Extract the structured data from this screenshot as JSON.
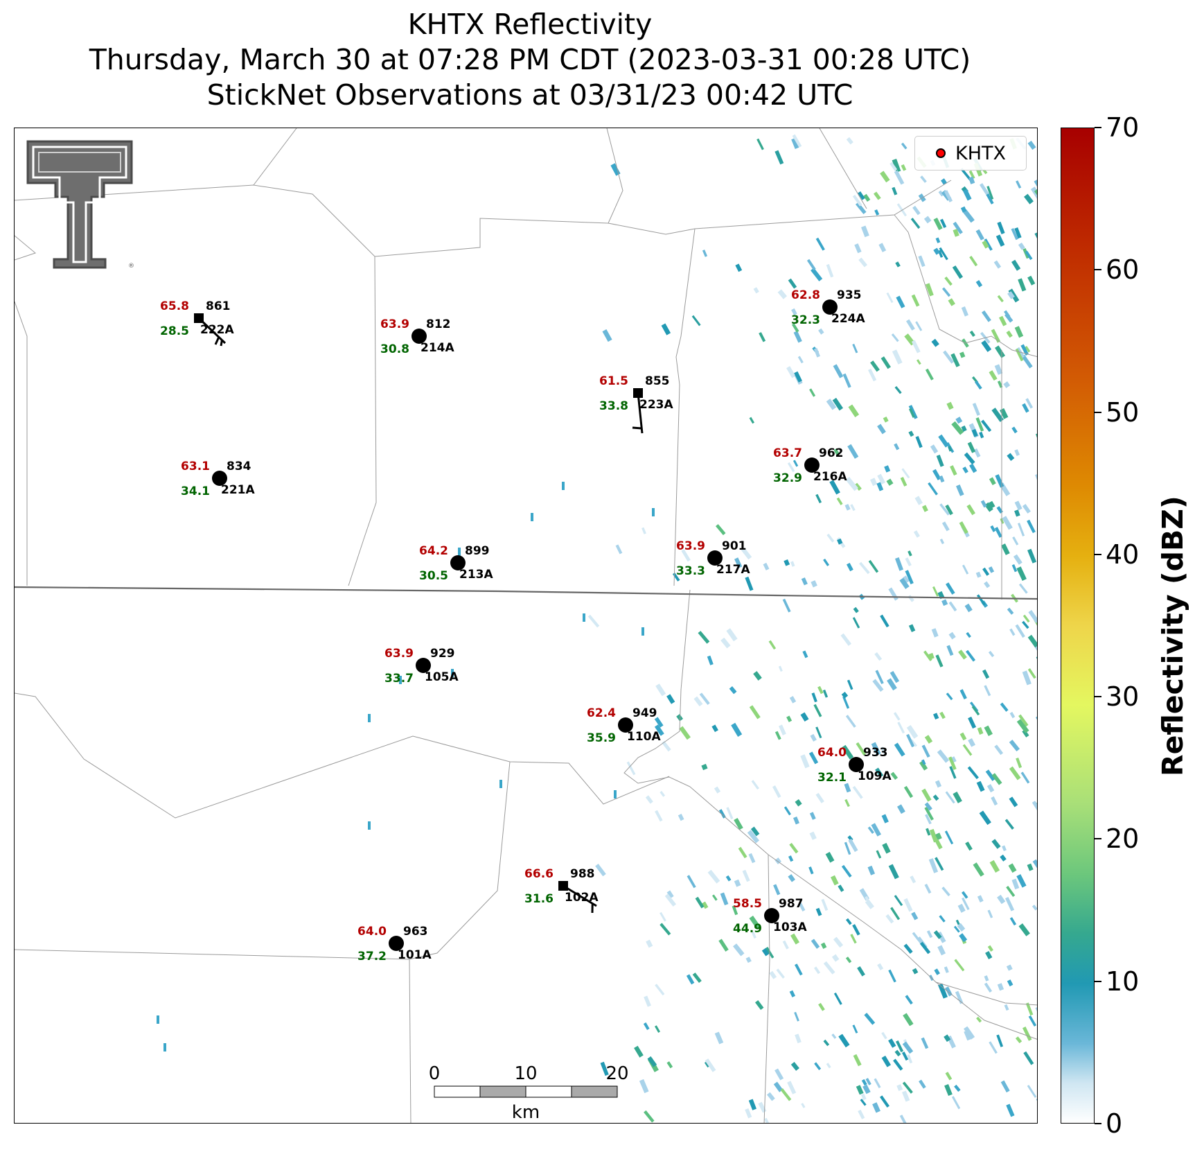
{
  "title": {
    "line1": "KHTX Reflectivity",
    "line2": "Thursday, March 30 at 07:28 PM CDT (2023-03-31 00:28 UTC)",
    "line3": "StickNet Observations at 03/31/23 00:42 UTC"
  },
  "legend": {
    "label": "KHTX",
    "marker_color": "#ff0000"
  },
  "colorbar": {
    "title": "Reflectivity (dBZ)",
    "ticks": [
      "0",
      "10",
      "20",
      "30",
      "40",
      "50",
      "60",
      "70"
    ],
    "range": [
      0,
      70
    ]
  },
  "scalebar": {
    "labels": [
      "0",
      "10",
      "20"
    ],
    "unit": "km"
  },
  "logo": "texas-tech-double-t",
  "stations": [
    {
      "temp": "65.8",
      "dew": "28.5",
      "pressure": "861",
      "id": "222A",
      "marker": "square"
    },
    {
      "temp": "63.9",
      "dew": "30.8",
      "pressure": "812",
      "id": "214A",
      "marker": "circle"
    },
    {
      "temp": "62.8",
      "dew": "32.3",
      "pressure": "935",
      "id": "224A",
      "marker": "circle"
    },
    {
      "temp": "61.5",
      "dew": "33.8",
      "pressure": "855",
      "id": "223A",
      "marker": "square"
    },
    {
      "temp": "63.1",
      "dew": "34.1",
      "pressure": "834",
      "id": "221A",
      "marker": "circle"
    },
    {
      "temp": "63.7",
      "dew": "32.9",
      "pressure": "962",
      "id": "216A",
      "marker": "circle"
    },
    {
      "temp": "64.2",
      "dew": "30.5",
      "pressure": "899",
      "id": "213A",
      "marker": "circle"
    },
    {
      "temp": "63.9",
      "dew": "33.3",
      "pressure": "901",
      "id": "217A",
      "marker": "circle"
    },
    {
      "temp": "63.9",
      "dew": "33.7",
      "pressure": "929",
      "id": "105A",
      "marker": "circle"
    },
    {
      "temp": "62.4",
      "dew": "35.9",
      "pressure": "949",
      "id": "110A",
      "marker": "circle"
    },
    {
      "temp": "64.0",
      "dew": "32.1",
      "pressure": "933",
      "id": "109A",
      "marker": "circle"
    },
    {
      "temp": "66.6",
      "dew": "31.6",
      "pressure": "988",
      "id": "102A",
      "marker": "square"
    },
    {
      "temp": "58.5",
      "dew": "44.9",
      "pressure": "987",
      "id": "103A",
      "marker": "circle"
    },
    {
      "temp": "64.0",
      "dew": "37.2",
      "pressure": "963",
      "id": "101A",
      "marker": "circle"
    }
  ],
  "colors": {
    "temp": "#b30000",
    "dew": "#006400",
    "county_line": "#9a9a9a",
    "state_line": "#666666"
  }
}
